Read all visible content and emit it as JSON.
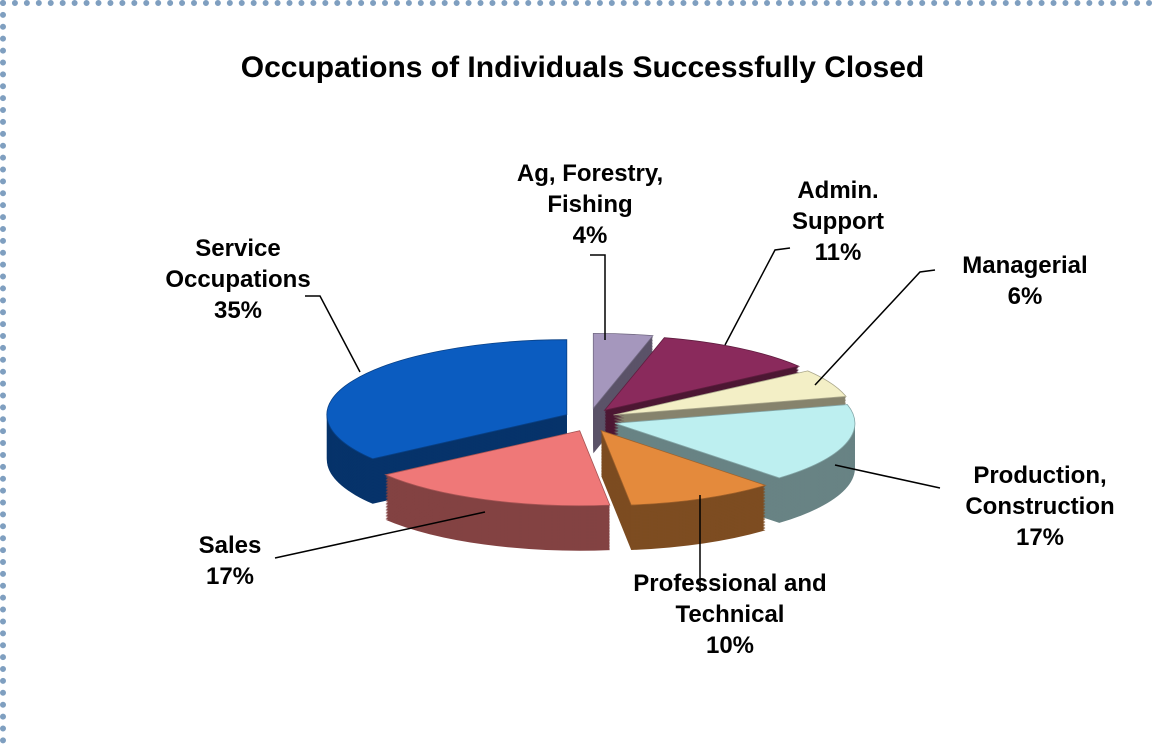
{
  "chart_data": {
    "type": "pie",
    "title": "Occupations of Individuals Successfully Closed",
    "categories": [
      "Ag, Forestry, Fishing",
      "Admin. Support",
      "Managerial",
      "Production, Construction",
      "Professional and Technical",
      "Sales",
      "Service Occupations"
    ],
    "values": [
      4,
      11,
      6,
      17,
      10,
      17,
      35
    ],
    "value_labels": [
      "4%",
      "11%",
      "6%",
      "17%",
      "10%",
      "17%",
      "35%"
    ],
    "colors": [
      "#a597bd",
      "#8a2a5c",
      "#f3efc6",
      "#bdeff0",
      "#e48a3c",
      "#ef7878",
      "#0b5cc0"
    ]
  }
}
